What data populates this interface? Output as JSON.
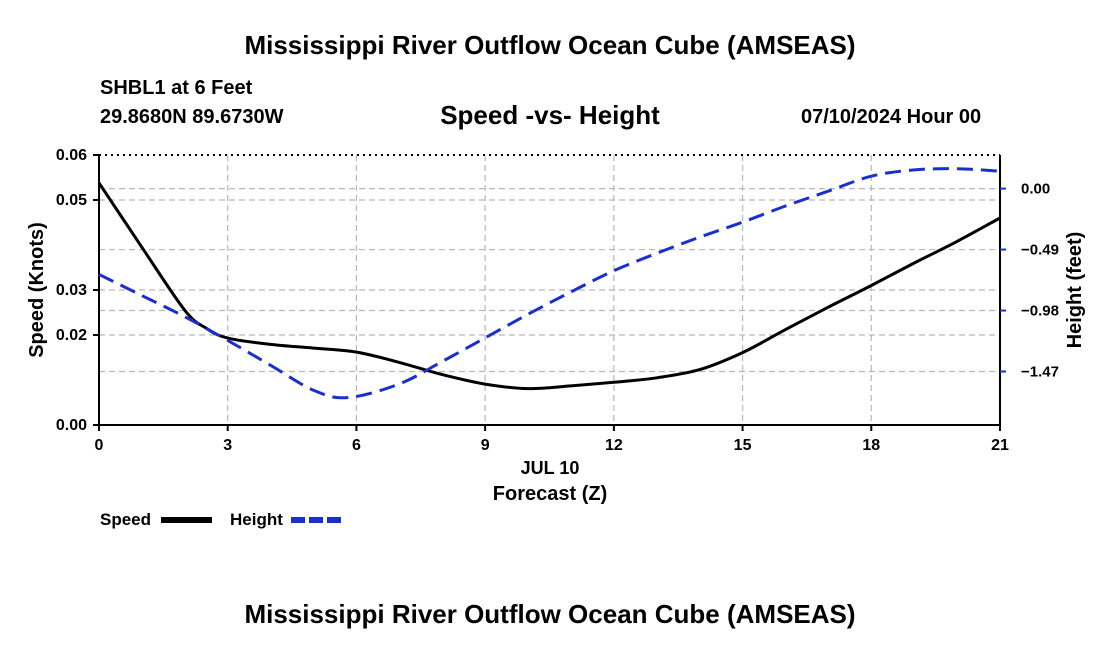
{
  "header": {
    "title": "Mississippi River Outflow Ocean Cube (AMSEAS)",
    "station": "SHBL1 at 6 Feet",
    "coords": "29.8680N  89.6730W",
    "datetime": "07/10/2024 Hour 00"
  },
  "footer": {
    "title": "Mississippi River Outflow Ocean Cube (AMSEAS)"
  },
  "colors": {
    "speed": "#000000",
    "height": "#1a2fd0",
    "grid": "#b8b8b8"
  },
  "chart_data": {
    "type": "line",
    "title": "Speed -vs- Height",
    "xlabel": "Forecast (Z)",
    "xsublabel": "JUL 10",
    "xlim": [
      0,
      21
    ],
    "xticks": [
      0,
      3,
      6,
      9,
      12,
      15,
      18,
      21
    ],
    "xtick_labels": [
      "0",
      "3",
      "6",
      "9",
      "12",
      "15",
      "18",
      "21"
    ],
    "ylabel": "Speed (Knots)",
    "ylim": [
      0,
      0.06
    ],
    "yticks": [
      0,
      0.02,
      0.03,
      0.05,
      0.06
    ],
    "ytick_labels": [
      "0.00",
      "0.02",
      "0.03",
      "0.05",
      "0.06"
    ],
    "y2label": "Height (feet)",
    "y2lim": [
      -1.9,
      0.27
    ],
    "y2ticks": [
      0.0,
      -0.49,
      -0.98,
      -1.47
    ],
    "y2tick_labels": [
      "0.00",
      "−0.49",
      "−0.98",
      "−1.47"
    ],
    "grid": true,
    "series": [
      {
        "name": "Speed",
        "axis": "left",
        "style": "solid",
        "x": [
          0,
          1,
          2,
          2.5,
          3,
          4,
          5,
          6,
          7,
          8,
          9,
          10,
          11,
          12,
          13,
          14,
          15,
          16,
          17,
          18,
          19,
          20,
          21
        ],
        "values": [
          0.0538,
          0.0395,
          0.0255,
          0.0215,
          0.0193,
          0.0179,
          0.0171,
          0.0162,
          0.0139,
          0.0112,
          0.0091,
          0.0081,
          0.0087,
          0.0095,
          0.0105,
          0.0123,
          0.0161,
          0.0212,
          0.0262,
          0.031,
          0.036,
          0.0408,
          0.046
        ]
      },
      {
        "name": "Height",
        "axis": "right",
        "style": "dashed",
        "x": [
          0,
          1,
          2,
          3,
          4,
          5,
          5.8,
          7,
          8,
          9,
          10,
          11,
          12,
          13,
          14,
          15,
          16,
          17,
          18,
          19,
          20,
          21
        ],
        "values": [
          -0.69,
          -0.86,
          -1.03,
          -1.22,
          -1.42,
          -1.62,
          -1.68,
          -1.57,
          -1.39,
          -1.2,
          -1.01,
          -0.83,
          -0.66,
          -0.52,
          -0.39,
          -0.27,
          -0.14,
          -0.02,
          0.1,
          0.15,
          0.16,
          0.14
        ]
      }
    ],
    "legend": [
      {
        "name": "Speed",
        "style": "solid"
      },
      {
        "name": "Height",
        "style": "dashed"
      }
    ],
    "legend_position": "bottom-left"
  }
}
